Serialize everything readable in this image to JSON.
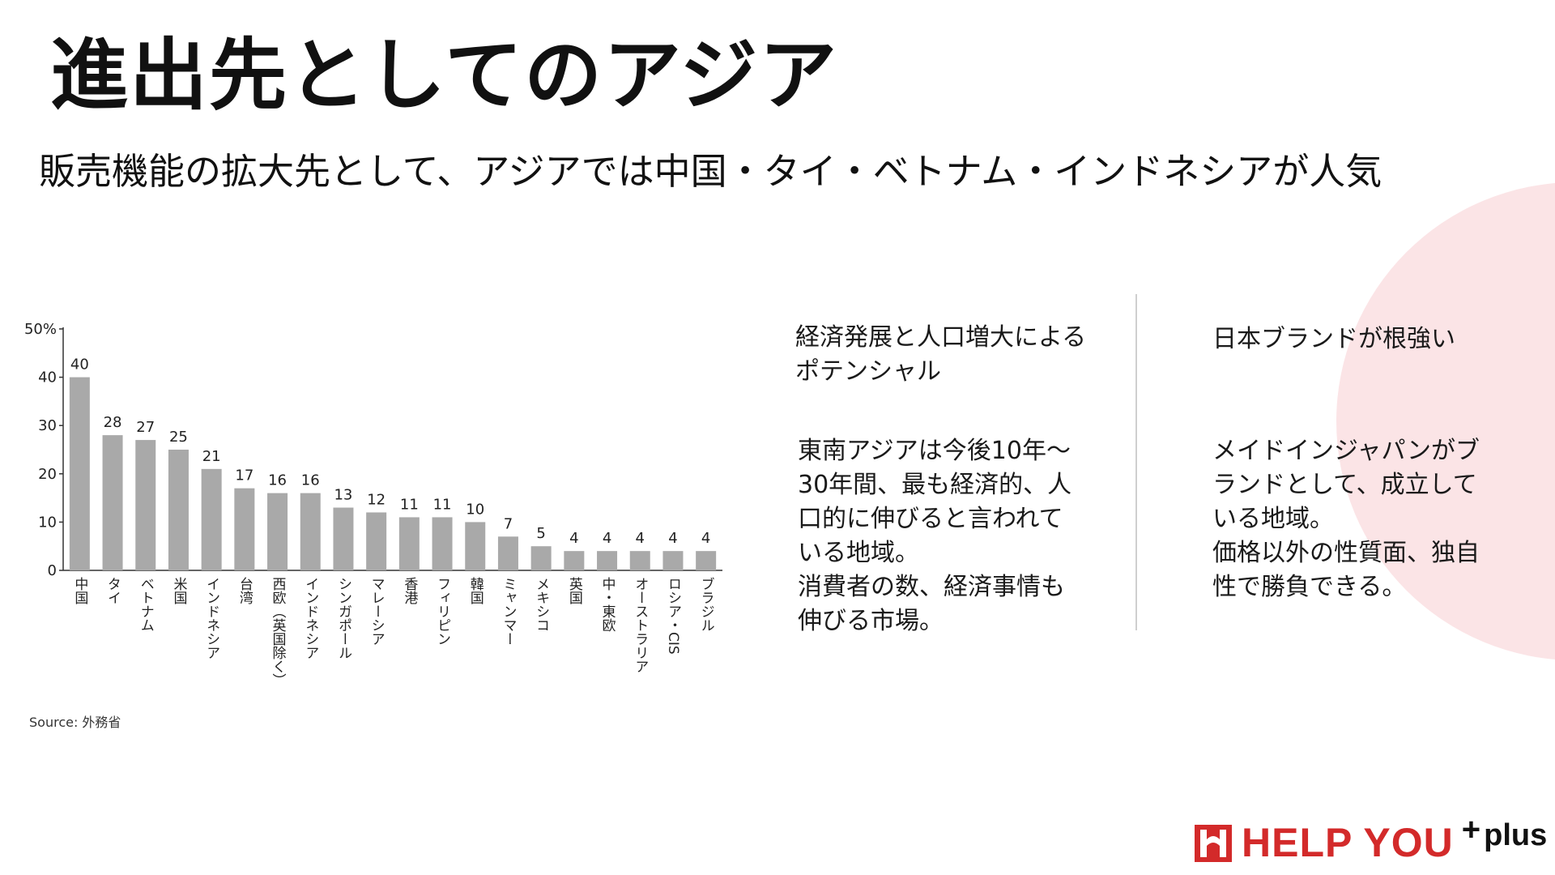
{
  "slide": {
    "title": "進出先としてのアジア",
    "subtitle": "販売機能の拡大先として、アジアでは中国・タイ・ベトナム・インドネシアが人気",
    "source": "Source: 外務省",
    "accent_color": "#fbe4e6",
    "brand_color": "#d32a2a"
  },
  "columns": {
    "left": {
      "heading": "経済発展と人口増大による\nポテンシャル",
      "body": "東南アジアは今後10年〜\n30年間、最も経済的、人\n口的に伸びると言われて\nいる地域。\n消費者の数、経済事情も\n伸びる市場。"
    },
    "right": {
      "heading": "日本ブランドが根強い",
      "body": "メイドインジャパンがブ\nランドとして、成立して\nいる地域。\n価格以外の性質面、独自\n性で勝負できる。"
    }
  },
  "logo": {
    "text": "HELP YOU",
    "plus_sign": "+",
    "plus_word": "plus",
    "icon": "brand-mark-icon"
  },
  "chart_data": {
    "type": "bar",
    "title": "",
    "xlabel": "",
    "ylabel": "",
    "ylim": [
      0,
      50
    ],
    "yticks": [
      0,
      10,
      20,
      30,
      40,
      50
    ],
    "ytick_labels": [
      "0",
      "10",
      "20",
      "30",
      "40",
      "50%"
    ],
    "grid": false,
    "bar_color": "#a9a9a9",
    "categories": [
      "中国",
      "タイ",
      "ベトナム",
      "米国",
      "インドネシア",
      "台湾",
      "西欧（英国除く）",
      "インドネシア",
      "シンガポール",
      "マレーシア",
      "香港",
      "フィリピン",
      "韓国",
      "ミャンマー",
      "メキシコ",
      "英国",
      "中・東欧",
      "オーストラリア",
      "ロシア・CIS",
      "ブラジル"
    ],
    "values": [
      40,
      28,
      27,
      25,
      21,
      17,
      16,
      16,
      13,
      12,
      11,
      11,
      10,
      7,
      5,
      4,
      4,
      4,
      4,
      4
    ]
  }
}
